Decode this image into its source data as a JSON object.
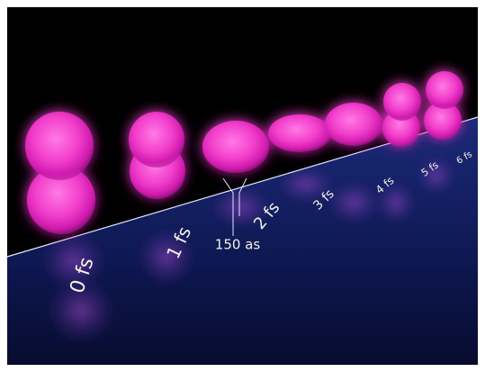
{
  "labels": {
    "t0": "0 fs",
    "t1": "1 fs",
    "t2": "2 fs",
    "t3": "3 fs",
    "t4": "4 fs",
    "t5": "5 fs",
    "t6": "6 fs",
    "interval": "150 as"
  }
}
